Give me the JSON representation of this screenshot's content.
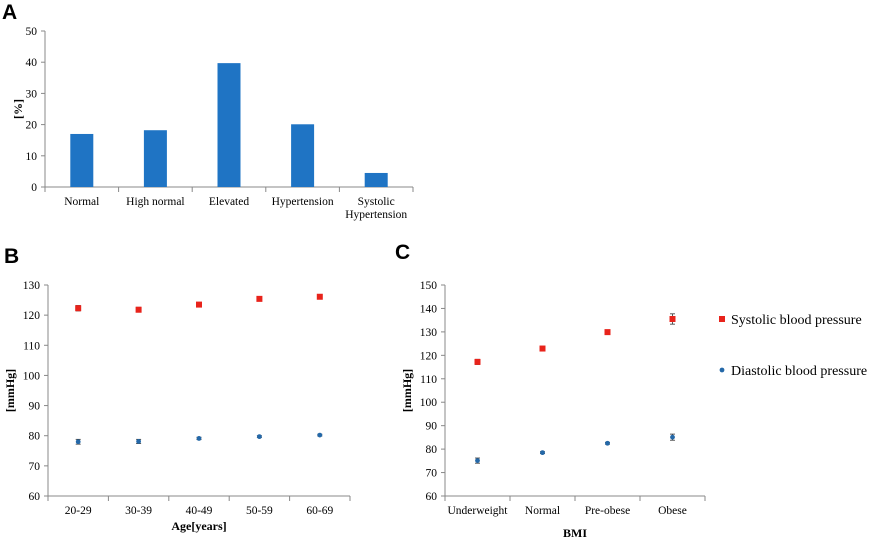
{
  "panels": {
    "a": {
      "label": "A"
    },
    "b": {
      "label": "B"
    },
    "c": {
      "label": "C"
    }
  },
  "legend": {
    "systolic": "Systolic blood pressure",
    "diastolic": "Diastolic blood pressure"
  },
  "colors": {
    "bar": "#1f74c4",
    "systolic": "#e8231b",
    "diastolic": "#2468a8"
  },
  "chart_data": [
    {
      "id": "A",
      "type": "bar",
      "title": "",
      "xlabel": "",
      "ylabel": "[%]",
      "ylim": [
        0,
        50
      ],
      "yticks": [
        0,
        10,
        20,
        30,
        40,
        50
      ],
      "categories": [
        [
          "Normal"
        ],
        [
          "High normal"
        ],
        [
          "Elevated"
        ],
        [
          "Hypertension"
        ],
        [
          "Systolic",
          "Hypertension"
        ]
      ],
      "values": [
        17,
        18.2,
        39.7,
        20.1,
        4.5
      ]
    },
    {
      "id": "B",
      "type": "scatter",
      "xlabel": "Age[years]",
      "ylabel": "[mmHg]",
      "ylim": [
        60,
        130
      ],
      "yticks": [
        60,
        70,
        80,
        90,
        100,
        110,
        120,
        130
      ],
      "categories": [
        "20-29",
        "30-39",
        "40-49",
        "50-59",
        "60-69"
      ],
      "series": [
        {
          "name": "Systolic blood pressure",
          "marker": "square",
          "values": [
            122.3,
            121.8,
            123.5,
            125.4,
            126.1
          ],
          "errors": [
            0.9,
            0.8,
            0.5,
            0.5,
            0.5
          ]
        },
        {
          "name": "Diastolic blood pressure",
          "marker": "circle",
          "values": [
            78,
            78.1,
            79.1,
            79.7,
            80.2
          ],
          "errors": [
            0.8,
            0.7,
            0.4,
            0.3,
            0.3
          ]
        }
      ]
    },
    {
      "id": "C",
      "type": "scatter",
      "xlabel": "BMI",
      "ylabel": "[mmHg]",
      "ylim": [
        60,
        150
      ],
      "yticks": [
        60,
        70,
        80,
        90,
        100,
        110,
        120,
        130,
        140,
        150
      ],
      "categories": [
        "Underweight",
        "Normal",
        "Pre-obese",
        "Obese"
      ],
      "series": [
        {
          "name": "Systolic blood pressure",
          "marker": "square",
          "values": [
            117.2,
            122.9,
            129.9,
            135.5
          ],
          "errors": [
            1.1,
            0.5,
            0.5,
            2.2
          ]
        },
        {
          "name": "Diastolic blood pressure",
          "marker": "circle",
          "values": [
            75.1,
            78.5,
            82.5,
            85.1
          ],
          "errors": [
            1.1,
            0.4,
            0.4,
            1.3
          ]
        }
      ]
    }
  ]
}
